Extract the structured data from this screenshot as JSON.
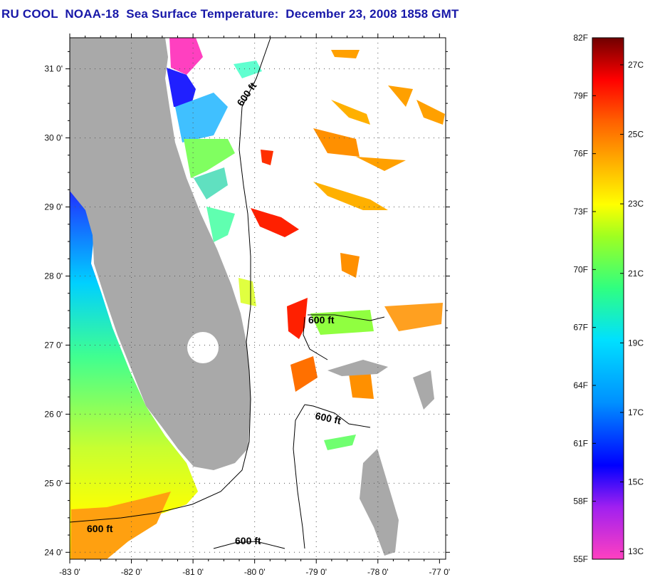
{
  "title": "RU COOL  NOAA-18  Sea Surface Temperature:  December 23, 2008 1858 GMT",
  "map": {
    "lat_labels": [
      {
        "lat": 31,
        "text": "31 0'"
      },
      {
        "lat": 30,
        "text": "30 0'"
      },
      {
        "lat": 29,
        "text": "29 0'"
      },
      {
        "lat": 28,
        "text": "28 0'"
      },
      {
        "lat": 27,
        "text": "27 0'"
      },
      {
        "lat": 26,
        "text": "26 0'"
      },
      {
        "lat": 25,
        "text": "25 0'"
      },
      {
        "lat": 24,
        "text": "24 0'"
      }
    ],
    "lon_labels": [
      {
        "lon": -83,
        "text": "-83 0'"
      },
      {
        "lon": -82,
        "text": "-82 0'"
      },
      {
        "lon": -81,
        "text": "-81 0'"
      },
      {
        "lon": -80,
        "text": "-80 0'"
      },
      {
        "lon": -79,
        "text": "-79 0'"
      },
      {
        "lon": -78,
        "text": "-78 0'"
      },
      {
        "lon": -77,
        "text": "-77 0'"
      }
    ],
    "contour_labels": [
      {
        "text": "600 ft"
      },
      {
        "text": "600 ft"
      },
      {
        "text": "600 ft"
      },
      {
        "text": "600 ft"
      },
      {
        "text": "600 ft"
      }
    ],
    "land_color": "#a9a9a9",
    "background_color": "#ffffff"
  },
  "colorbar": {
    "fahrenheit_labels": [
      "82F",
      "79F",
      "76F",
      "73F",
      "70F",
      "67F",
      "64F",
      "61F",
      "58F",
      "55F"
    ],
    "celsius_labels": [
      "27C",
      "25C",
      "23C",
      "21C",
      "19C",
      "17C",
      "15C",
      "13C"
    ],
    "range_f": [
      55,
      82
    ],
    "colors": [
      "#ff40c0",
      "#8020ff",
      "#0000ff",
      "#0090ff",
      "#00e0ff",
      "#30ff80",
      "#a0ff20",
      "#ffff00",
      "#ffb000",
      "#ff6000",
      "#ff0000",
      "#a00000",
      "#700000"
    ]
  }
}
